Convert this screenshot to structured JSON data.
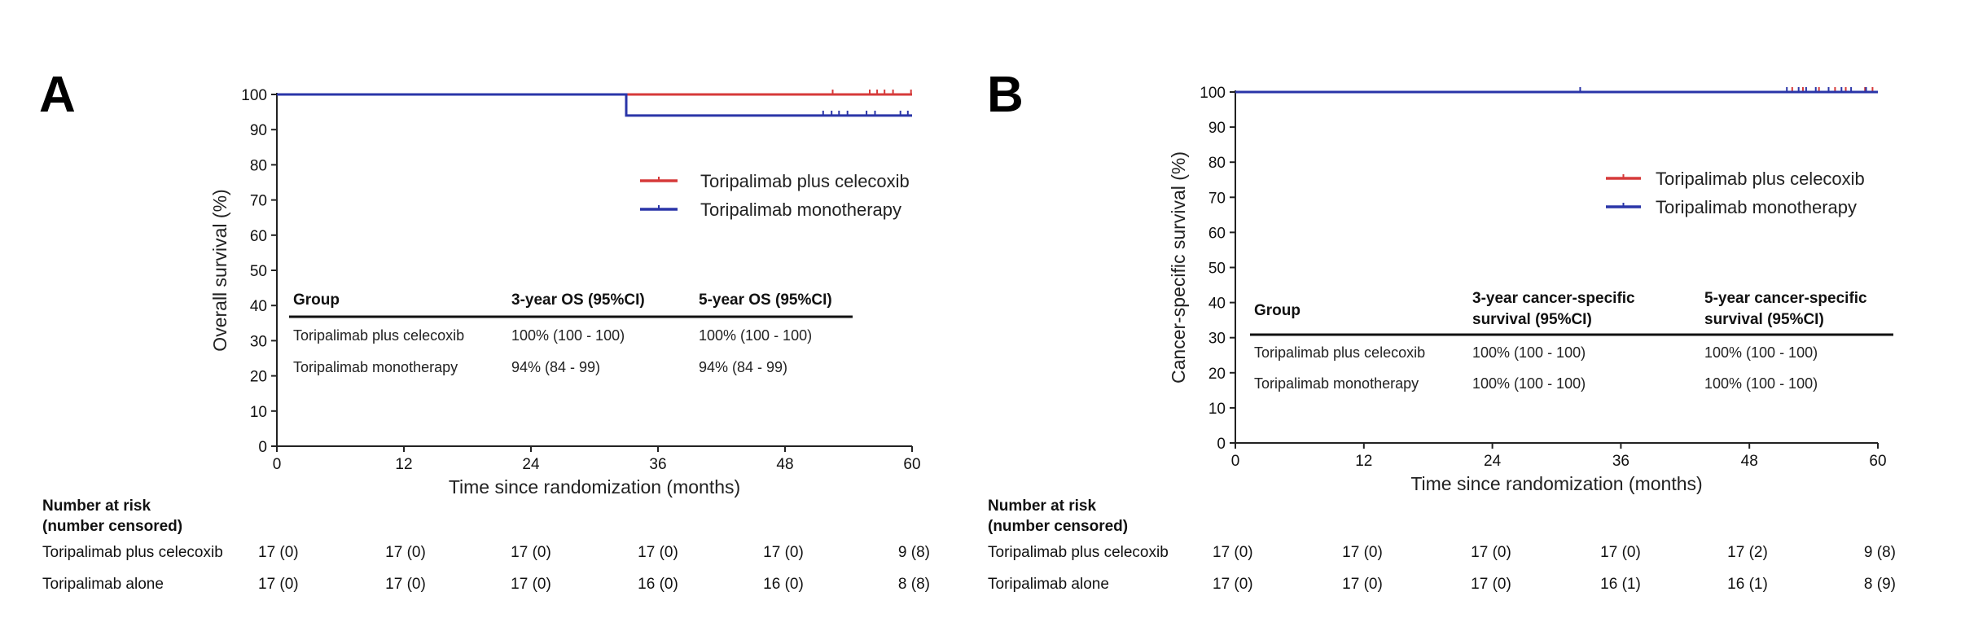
{
  "chart_data": [
    {
      "type": "line",
      "panel_label": "A",
      "xlabel": "Time since randomization (months)",
      "ylabel": "Overall survival (%)",
      "xlim": [
        0,
        60
      ],
      "ylim": [
        0,
        100
      ],
      "xticks": [
        0,
        12,
        24,
        36,
        48,
        60
      ],
      "yticks": [
        0,
        10,
        20,
        30,
        40,
        50,
        60,
        70,
        80,
        90,
        100
      ],
      "legend_position": "right",
      "series": [
        {
          "name": "Toripalimab plus celecoxib",
          "color": "#d63a3a",
          "steps": [
            [
              0,
              100
            ],
            [
              60,
              100
            ]
          ],
          "censor_x": [
            52.5,
            56,
            56.7,
            57.4,
            58.2,
            59.9
          ]
        },
        {
          "name": "Toripalimab monotherapy",
          "color": "#2a35a8",
          "steps": [
            [
              0,
              100
            ],
            [
              33,
              100
            ],
            [
              33,
              94
            ],
            [
              60,
              94
            ]
          ],
          "censor_x": [
            51.6,
            52.4,
            53.1,
            53.9,
            55.7,
            56.5,
            58.9,
            59.6
          ]
        }
      ],
      "table": {
        "headers": [
          [
            "Group"
          ],
          [
            "3-year OS (95%CI)"
          ],
          [
            "5-year OS (95%CI)"
          ]
        ],
        "rows": [
          [
            "Toripalimab plus celecoxib",
            "100% (100 - 100)",
            "100% (100 - 100)"
          ],
          [
            "Toripalimab monotherapy",
            "94% (84 - 99)",
            "94% (84 - 99)"
          ]
        ]
      },
      "risk_table": {
        "title_line1": "Number at risk",
        "title_line2": "(number censored)",
        "rows": [
          {
            "label": "Toripalimab plus celecoxib",
            "values": [
              "17 (0)",
              "17 (0)",
              "17 (0)",
              "17 (0)",
              "17 (0)",
              "9 (8)"
            ]
          },
          {
            "label": "Toripalimab alone",
            "values": [
              "17 (0)",
              "17 (0)",
              "17 (0)",
              "16 (0)",
              "16 (0)",
              "8 (8)"
            ]
          }
        ]
      }
    },
    {
      "type": "line",
      "panel_label": "B",
      "xlabel": "Time since randomization (months)",
      "ylabel": "Cancer-specific survival (%)",
      "xlim": [
        0,
        60
      ],
      "ylim": [
        0,
        100
      ],
      "xticks": [
        0,
        12,
        24,
        36,
        48,
        60
      ],
      "yticks": [
        0,
        10,
        20,
        30,
        40,
        50,
        60,
        70,
        80,
        90,
        100
      ],
      "legend_position": "right",
      "series": [
        {
          "name": "Toripalimab plus celecoxib",
          "color": "#d63a3a",
          "steps": [
            [
              0,
              100
            ],
            [
              60,
              100
            ]
          ],
          "censor_x": [
            52,
            53,
            54.5,
            56,
            57,
            58.8,
            59.5
          ]
        },
        {
          "name": "Toripalimab monotherapy",
          "color": "#2a35a8",
          "steps": [
            [
              0,
              100
            ],
            [
              60,
              100
            ]
          ],
          "censor_x": [
            32.2,
            51.5,
            52.6,
            53.3,
            54.2,
            55.4,
            56.6,
            57.5,
            58.9
          ]
        }
      ],
      "table": {
        "headers": [
          [
            "Group"
          ],
          [
            "3-year cancer-specific",
            "survival (95%CI)"
          ],
          [
            "5-year cancer-specific",
            "survival (95%CI)"
          ]
        ],
        "rows": [
          [
            "Toripalimab plus celecoxib",
            "100% (100 - 100)",
            "100% (100 - 100)"
          ],
          [
            "Toripalimab monotherapy",
            "100% (100 - 100)",
            "100% (100 - 100)"
          ]
        ]
      },
      "risk_table": {
        "title_line1": "Number at risk",
        "title_line2": "(number censored)",
        "rows": [
          {
            "label": "Toripalimab plus celecoxib",
            "values": [
              "17 (0)",
              "17 (0)",
              "17 (0)",
              "17 (0)",
              "17 (2)",
              "9 (8)"
            ]
          },
          {
            "label": "Toripalimab alone",
            "values": [
              "17 (0)",
              "17 (0)",
              "17 (0)",
              "16 (1)",
              "16 (1)",
              "8 (9)"
            ]
          }
        ]
      }
    }
  ]
}
